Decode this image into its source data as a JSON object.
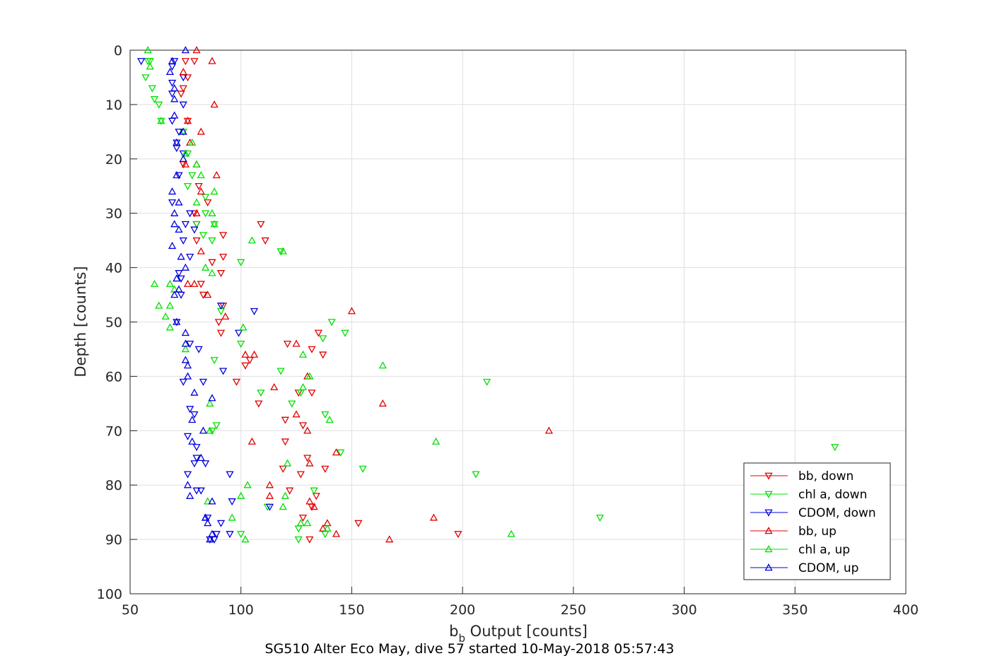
{
  "chart_data": {
    "type": "scatter",
    "xlabel_main": "b",
    "xlabel_sub": "b",
    "xlabel_rest": " Output [counts]",
    "ylabel": "Depth [counts]",
    "caption": "SG510 Alter Eco May, dive 57 started 10-May-2018 05:57:43",
    "xlim": [
      50,
      400
    ],
    "ylim": [
      0,
      100
    ],
    "y_reversed": true,
    "grid": true,
    "legend_placement": "bottom-right",
    "x_ticks": [
      50,
      100,
      150,
      200,
      250,
      300,
      350,
      400
    ],
    "y_ticks": [
      0,
      10,
      20,
      30,
      40,
      50,
      60,
      70,
      80,
      90,
      100
    ],
    "series": [
      {
        "name": "bb, down",
        "color": "#e00000",
        "marker": "triangle-down",
        "points": [
          [
            79,
            2
          ],
          [
            75,
            2
          ],
          [
            76,
            5
          ],
          [
            74,
            7
          ],
          [
            73,
            8
          ],
          [
            76,
            13
          ],
          [
            74,
            21
          ],
          [
            81,
            25
          ],
          [
            85,
            28
          ],
          [
            79,
            30
          ],
          [
            80,
            32
          ],
          [
            80,
            35
          ],
          [
            92,
            34
          ],
          [
            92,
            38
          ],
          [
            87,
            39
          ],
          [
            91,
            41
          ],
          [
            82,
            43
          ],
          [
            83,
            45
          ],
          [
            109,
            32
          ],
          [
            111,
            35
          ],
          [
            92,
            47
          ],
          [
            90,
            50
          ],
          [
            91,
            52
          ],
          [
            104,
            57
          ],
          [
            102,
            58
          ],
          [
            98,
            61
          ],
          [
            108,
            65
          ],
          [
            121,
            54
          ],
          [
            135,
            52
          ],
          [
            137,
            56
          ],
          [
            132,
            55
          ],
          [
            120,
            68
          ],
          [
            128,
            69
          ],
          [
            126,
            63
          ],
          [
            132,
            63
          ],
          [
            120,
            72
          ],
          [
            130,
            75
          ],
          [
            138,
            77
          ],
          [
            119,
            77
          ],
          [
            122,
            81
          ],
          [
            127,
            78
          ],
          [
            134,
            82
          ],
          [
            132,
            84
          ],
          [
            128,
            86
          ],
          [
            153,
            87
          ],
          [
            198,
            89
          ],
          [
            131,
            90
          ]
        ]
      },
      {
        "name": "chl a, down",
        "color": "#00e000",
        "marker": "triangle-down",
        "points": [
          [
            58,
            2
          ],
          [
            59,
            2
          ],
          [
            57,
            5
          ],
          [
            60,
            7
          ],
          [
            61,
            9
          ],
          [
            63,
            10
          ],
          [
            64,
            13
          ],
          [
            74,
            15
          ],
          [
            76,
            19
          ],
          [
            78,
            23
          ],
          [
            76,
            25
          ],
          [
            84,
            27
          ],
          [
            84,
            30
          ],
          [
            88,
            32
          ],
          [
            80,
            32
          ],
          [
            83,
            34
          ],
          [
            87,
            35
          ],
          [
            100,
            39
          ],
          [
            118,
            37
          ],
          [
            91,
            48
          ],
          [
            141,
            50
          ],
          [
            147,
            52
          ],
          [
            137,
            53
          ],
          [
            100,
            54
          ],
          [
            88,
            57
          ],
          [
            118,
            59
          ],
          [
            109,
            63
          ],
          [
            123,
            65
          ],
          [
            138,
            67
          ],
          [
            211,
            61
          ],
          [
            127,
            63
          ],
          [
            87,
            70
          ],
          [
            89,
            69
          ],
          [
            145,
            74
          ],
          [
            155,
            77
          ],
          [
            206,
            78
          ],
          [
            368,
            73
          ],
          [
            133,
            81
          ],
          [
            112,
            84
          ],
          [
            100,
            89
          ],
          [
            126,
            90
          ],
          [
            138,
            89
          ],
          [
            262,
            86
          ],
          [
            126,
            88
          ]
        ]
      },
      {
        "name": "CDOM, down",
        "color": "#0000e0",
        "marker": "triangle-down",
        "points": [
          [
            55,
            2
          ],
          [
            70,
            2
          ],
          [
            69,
            3
          ],
          [
            74,
            5
          ],
          [
            69,
            6
          ],
          [
            69,
            8
          ],
          [
            74,
            10
          ],
          [
            69,
            13
          ],
          [
            72,
            15
          ],
          [
            71,
            17
          ],
          [
            71,
            18
          ],
          [
            74,
            19
          ],
          [
            72,
            23
          ],
          [
            69,
            28
          ],
          [
            77,
            30
          ],
          [
            75,
            32
          ],
          [
            79,
            33
          ],
          [
            74,
            35
          ],
          [
            77,
            38
          ],
          [
            72,
            41
          ],
          [
            73,
            42
          ],
          [
            73,
            45
          ],
          [
            91,
            47
          ],
          [
            106,
            48
          ],
          [
            71,
            50
          ],
          [
            99,
            52
          ],
          [
            77,
            54
          ],
          [
            81,
            55
          ],
          [
            74,
            61
          ],
          [
            92,
            59
          ],
          [
            83,
            61
          ],
          [
            77,
            66
          ],
          [
            79,
            67
          ],
          [
            76,
            71
          ],
          [
            80,
            73
          ],
          [
            80,
            75
          ],
          [
            79,
            76
          ],
          [
            84,
            76
          ],
          [
            76,
            78
          ],
          [
            95,
            78
          ],
          [
            80,
            81
          ],
          [
            82,
            81
          ],
          [
            96,
            83
          ],
          [
            113,
            84
          ],
          [
            85,
            86
          ],
          [
            88,
            90
          ],
          [
            86,
            90
          ],
          [
            91,
            87
          ],
          [
            95,
            89
          ],
          [
            89,
            89
          ]
        ]
      },
      {
        "name": "bb, up",
        "color": "#e00000",
        "marker": "triangle-up",
        "points": [
          [
            80,
            0
          ],
          [
            87,
            2
          ],
          [
            74,
            4
          ],
          [
            88,
            10
          ],
          [
            82,
            15
          ],
          [
            76,
            13
          ],
          [
            77,
            17
          ],
          [
            75,
            21
          ],
          [
            80,
            21
          ],
          [
            89,
            23
          ],
          [
            82,
            26
          ],
          [
            80,
            30
          ],
          [
            82,
            37
          ],
          [
            85,
            45
          ],
          [
            79,
            43
          ],
          [
            76,
            43
          ],
          [
            93,
            49
          ],
          [
            150,
            48
          ],
          [
            125,
            54
          ],
          [
            106,
            56
          ],
          [
            102,
            56
          ],
          [
            130,
            60
          ],
          [
            164,
            65
          ],
          [
            115,
            62
          ],
          [
            125,
            67
          ],
          [
            130,
            70
          ],
          [
            239,
            70
          ],
          [
            105,
            72
          ],
          [
            143,
            74
          ],
          [
            131,
            76
          ],
          [
            113,
            80
          ],
          [
            113,
            82
          ],
          [
            133,
            84
          ],
          [
            131,
            83
          ],
          [
            187,
            86
          ],
          [
            139,
            87
          ],
          [
            143,
            89
          ],
          [
            167,
            90
          ],
          [
            137,
            88
          ]
        ]
      },
      {
        "name": "chl a, up",
        "color": "#00e000",
        "marker": "triangle-up",
        "points": [
          [
            58,
            0
          ],
          [
            59,
            3
          ],
          [
            64,
            13
          ],
          [
            78,
            17
          ],
          [
            75,
            19
          ],
          [
            80,
            21
          ],
          [
            82,
            23
          ],
          [
            88,
            26
          ],
          [
            80,
            28
          ],
          [
            87,
            30
          ],
          [
            88,
            32
          ],
          [
            84,
            40
          ],
          [
            87,
            41
          ],
          [
            105,
            35
          ],
          [
            119,
            37
          ],
          [
            101,
            51
          ],
          [
            61,
            43
          ],
          [
            63,
            47
          ],
          [
            66,
            49
          ],
          [
            68,
            51
          ],
          [
            68,
            43
          ],
          [
            70,
            44
          ],
          [
            68,
            47
          ],
          [
            128,
            56
          ],
          [
            164,
            58
          ],
          [
            128,
            62
          ],
          [
            86,
            65
          ],
          [
            131,
            60
          ],
          [
            140,
            68
          ],
          [
            86,
            70
          ],
          [
            188,
            72
          ],
          [
            121,
            76
          ],
          [
            103,
            80
          ],
          [
            100,
            82
          ],
          [
            120,
            82
          ],
          [
            119,
            84
          ],
          [
            96,
            86
          ],
          [
            130,
            87
          ],
          [
            102,
            90
          ],
          [
            127,
            87
          ],
          [
            139,
            88
          ],
          [
            222,
            89
          ],
          [
            85,
            83
          ],
          [
            75,
            55
          ]
        ]
      },
      {
        "name": "CDOM, up",
        "color": "#0000e0",
        "marker": "triangle-up",
        "points": [
          [
            75,
            0
          ],
          [
            69,
            2
          ],
          [
            68,
            4
          ],
          [
            70,
            7
          ],
          [
            70,
            9
          ],
          [
            70,
            12
          ],
          [
            74,
            15
          ],
          [
            71,
            17
          ],
          [
            74,
            20
          ],
          [
            71,
            23
          ],
          [
            69,
            26
          ],
          [
            72,
            28
          ],
          [
            70,
            30
          ],
          [
            70,
            32
          ],
          [
            72,
            33
          ],
          [
            69,
            36
          ],
          [
            73,
            38
          ],
          [
            75,
            40
          ],
          [
            71,
            42
          ],
          [
            70,
            45
          ],
          [
            72,
            44
          ],
          [
            71,
            50
          ],
          [
            75,
            52
          ],
          [
            75,
            54
          ],
          [
            75,
            57
          ],
          [
            76,
            58
          ],
          [
            76,
            60
          ],
          [
            79,
            63
          ],
          [
            87,
            64
          ],
          [
            78,
            68
          ],
          [
            83,
            70
          ],
          [
            78,
            72
          ],
          [
            82,
            75
          ],
          [
            76,
            80
          ],
          [
            77,
            82
          ],
          [
            87,
            83
          ],
          [
            84,
            86
          ],
          [
            84,
            86
          ],
          [
            85,
            87
          ],
          [
            87,
            89
          ],
          [
            86,
            90
          ]
        ]
      }
    ]
  }
}
